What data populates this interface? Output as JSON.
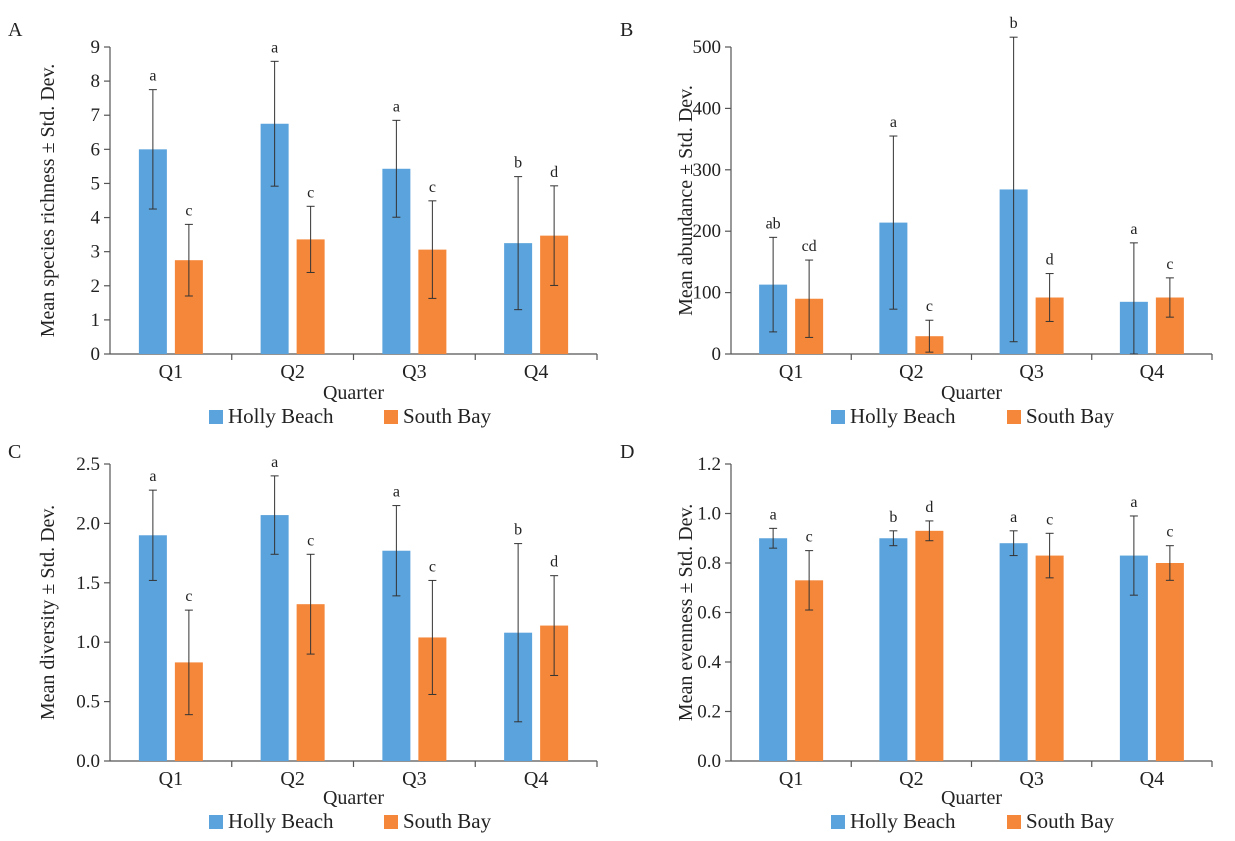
{
  "chart_data": [
    {
      "panel": "A",
      "type": "bar",
      "categories": [
        "Q1",
        "Q2",
        "Q3",
        "Q4"
      ],
      "xlabel": "Quarter",
      "ylabel": "Mean species richness ± Std. Dev.",
      "ylim": [
        0,
        9
      ],
      "yticks": [
        "0",
        "1",
        "2",
        "3",
        "4",
        "5",
        "6",
        "7",
        "8",
        "9"
      ],
      "legend": "bottom",
      "series": [
        {
          "name": "Holly Beach",
          "color": "#5BA3DC",
          "values": [
            6.0,
            6.75,
            5.43,
            3.25
          ],
          "errors": [
            1.75,
            1.83,
            1.42,
            1.95
          ],
          "labels": [
            "a",
            "a",
            "a",
            "b"
          ]
        },
        {
          "name": "South Bay",
          "color": "#F5873A",
          "values": [
            2.75,
            3.36,
            3.06,
            3.47
          ],
          "errors": [
            1.05,
            0.97,
            1.43,
            1.46
          ],
          "labels": [
            "c",
            "c",
            "c",
            "d"
          ]
        }
      ]
    },
    {
      "panel": "B",
      "type": "bar",
      "categories": [
        "Q1",
        "Q2",
        "Q3",
        "Q4"
      ],
      "xlabel": "Quarter",
      "ylabel": "Mean abundance ± Std. Dev.",
      "ylim": [
        0,
        500
      ],
      "yticks": [
        "0",
        "100",
        "200",
        "300",
        "400",
        "500"
      ],
      "legend": "bottom",
      "series": [
        {
          "name": "Holly Beach",
          "color": "#5BA3DC",
          "values": [
            113,
            214,
            268,
            85
          ],
          "errors": [
            77,
            141,
            248,
            96
          ],
          "labels": [
            "ab",
            "a",
            "b",
            "a"
          ]
        },
        {
          "name": "South Bay",
          "color": "#F5873A",
          "values": [
            90,
            29,
            92,
            92
          ],
          "errors": [
            63,
            26,
            39,
            32
          ],
          "labels": [
            "cd",
            "c",
            "d",
            "c"
          ]
        }
      ]
    },
    {
      "panel": "C",
      "type": "bar",
      "categories": [
        "Q1",
        "Q2",
        "Q3",
        "Q4"
      ],
      "xlabel": "Quarter",
      "ylabel": "Mean diversity ± Std. Dev.",
      "ylim": [
        0,
        2.5
      ],
      "yticks": [
        "0.0",
        "0.5",
        "1.0",
        "1.5",
        "2.0",
        "2.5"
      ],
      "legend": "bottom",
      "series": [
        {
          "name": "Holly Beach",
          "color": "#5BA3DC",
          "values": [
            1.9,
            2.07,
            1.77,
            1.08
          ],
          "errors": [
            0.38,
            0.33,
            0.38,
            0.75
          ],
          "labels": [
            "a",
            "a",
            "a",
            "b"
          ]
        },
        {
          "name": "South Bay",
          "color": "#F5873A",
          "values": [
            0.83,
            1.32,
            1.04,
            1.14
          ],
          "errors": [
            0.44,
            0.42,
            0.48,
            0.42
          ],
          "labels": [
            "c",
            "c",
            "c",
            "d"
          ]
        }
      ]
    },
    {
      "panel": "D",
      "type": "bar",
      "categories": [
        "Q1",
        "Q2",
        "Q3",
        "Q4"
      ],
      "xlabel": "Quarter",
      "ylabel": "Mean evenness ± Std. Dev.",
      "ylim": [
        0,
        1.2
      ],
      "yticks": [
        "0.0",
        "0.2",
        "0.4",
        "0.6",
        "0.8",
        "1.0",
        "1.2"
      ],
      "legend": "bottom",
      "series": [
        {
          "name": "Holly Beach",
          "color": "#5BA3DC",
          "values": [
            0.9,
            0.9,
            0.88,
            0.83
          ],
          "errors": [
            0.04,
            0.03,
            0.05,
            0.16
          ],
          "labels": [
            "a",
            "b",
            "a",
            "a"
          ]
        },
        {
          "name": "South Bay",
          "color": "#F5873A",
          "values": [
            0.73,
            0.93,
            0.83,
            0.8
          ],
          "errors": [
            0.12,
            0.04,
            0.09,
            0.07
          ],
          "labels": [
            "c",
            "d",
            "c",
            "c"
          ]
        }
      ]
    }
  ]
}
